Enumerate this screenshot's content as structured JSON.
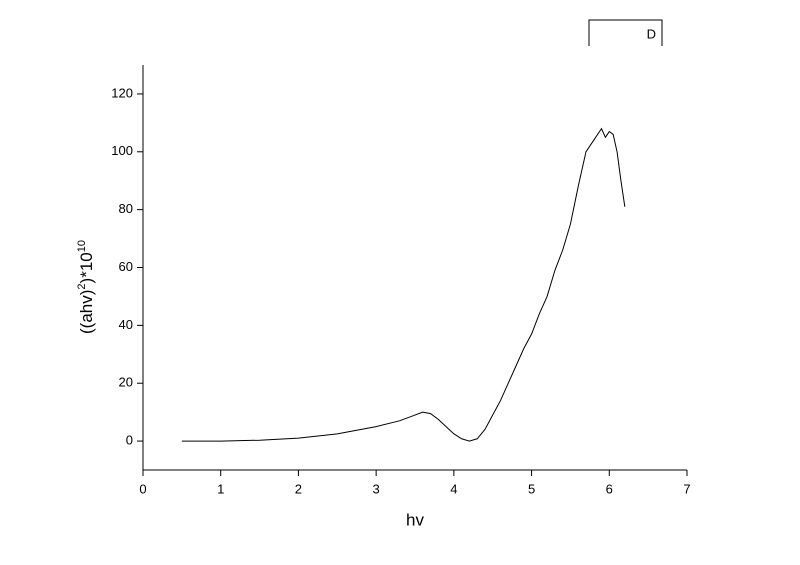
{
  "chart_data": {
    "type": "line",
    "xlabel": "hv",
    "ylabel": [
      "((ahv)",
      "2",
      ")*10",
      "10"
    ],
    "xlim": [
      0,
      7
    ],
    "ylim": [
      -10,
      130
    ],
    "xticks": [
      0,
      1,
      2,
      3,
      4,
      5,
      6,
      7
    ],
    "yticks": [
      0,
      20,
      40,
      60,
      80,
      100,
      120
    ],
    "legend": "top-right",
    "series": [
      {
        "name": "D",
        "color": "#000000",
        "x": [
          0.5,
          1.0,
          1.5,
          2.0,
          2.5,
          3.0,
          3.3,
          3.5,
          3.6,
          3.7,
          3.8,
          3.9,
          4.0,
          4.1,
          4.2,
          4.3,
          4.4,
          4.5,
          4.6,
          4.7,
          4.8,
          4.9,
          5.0,
          5.1,
          5.2,
          5.3,
          5.4,
          5.5,
          5.6,
          5.7,
          5.8,
          5.9,
          5.95,
          6.0,
          6.05,
          6.1,
          6.15,
          6.2
        ],
        "values": [
          0,
          0,
          0.3,
          1,
          2.5,
          5,
          7,
          9,
          10,
          9.5,
          7.5,
          5,
          2.5,
          0.8,
          0,
          0.8,
          4,
          9,
          14,
          20,
          26,
          32,
          37,
          44,
          50,
          59,
          66,
          75,
          88,
          100,
          104,
          108,
          105,
          107,
          106,
          100,
          90,
          81
        ]
      }
    ]
  }
}
